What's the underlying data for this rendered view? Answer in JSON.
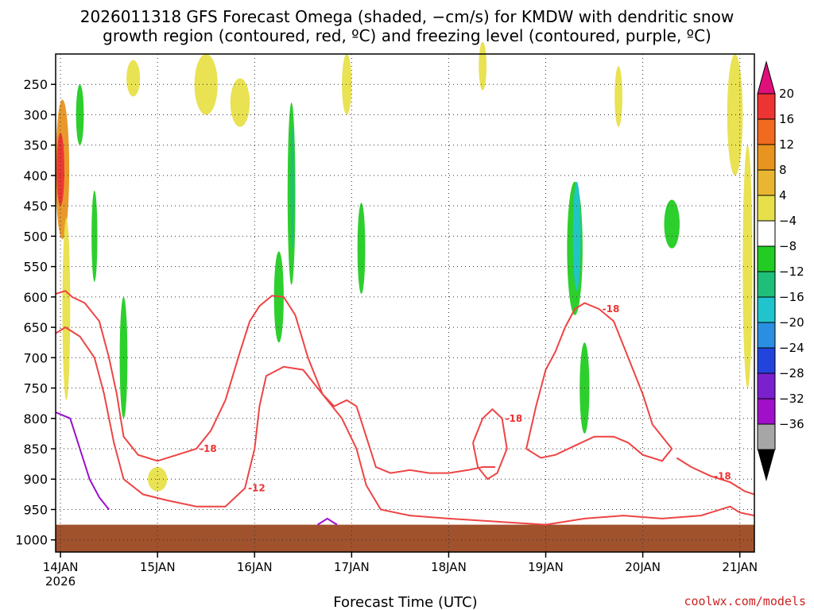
{
  "chart_data": {
    "type": "heatmap",
    "title_line1": "2026011318 GFS Forecast Omega (shaded, −cm/s) for KMDW with dendritic snow",
    "title_line2": "growth region (contoured, red, ºC) and freezing level (contoured, purple, ºC)",
    "xlabel": "Forecast Time (UTC)",
    "ylabel": "",
    "credit": "coolwx.com/models",
    "x_range_days": [
      0.95,
      8.15
    ],
    "y_range_hpa": [
      200,
      1020
    ],
    "x_ticks": [
      {
        "label": "14JAN",
        "sub": "2026",
        "day": 1.0
      },
      {
        "label": "15JAN",
        "sub": "",
        "day": 2.0
      },
      {
        "label": "16JAN",
        "sub": "",
        "day": 3.0
      },
      {
        "label": "17JAN",
        "sub": "",
        "day": 4.0
      },
      {
        "label": "18JAN",
        "sub": "",
        "day": 5.0
      },
      {
        "label": "19JAN",
        "sub": "",
        "day": 6.0
      },
      {
        "label": "20JAN",
        "sub": "",
        "day": 7.0
      },
      {
        "label": "21JAN",
        "sub": "",
        "day": 8.0
      }
    ],
    "y_ticks": [
      {
        "label": "250",
        "p": 250
      },
      {
        "label": "300",
        "p": 300
      },
      {
        "label": "350",
        "p": 350
      },
      {
        "label": "400",
        "p": 400
      },
      {
        "label": "450",
        "p": 450
      },
      {
        "label": "500",
        "p": 500
      },
      {
        "label": "550",
        "p": 550
      },
      {
        "label": "600",
        "p": 600
      },
      {
        "label": "650",
        "p": 650
      },
      {
        "label": "700",
        "p": 700
      },
      {
        "label": "750",
        "p": 750
      },
      {
        "label": "800",
        "p": 800
      },
      {
        "label": "850",
        "p": 850
      },
      {
        "label": "900",
        "p": 900
      },
      {
        "label": "950",
        "p": 950
      },
      {
        "label": "1000",
        "p": 1000
      }
    ],
    "colorbar": {
      "labels": [
        "20",
        "16",
        "12",
        "8",
        "4",
        "−4",
        "−8",
        "−12",
        "−16",
        "−20",
        "−24",
        "−28",
        "−32",
        "−36"
      ],
      "top_arrow_color": "#e0107a",
      "bottom_arrow_color": "#000000",
      "bands": [
        {
          "color": "#ee3333"
        },
        {
          "color": "#f06a20"
        },
        {
          "color": "#e89420"
        },
        {
          "color": "#e8b630"
        },
        {
          "color": "#e8e04a"
        },
        {
          "color": "#ffffff"
        },
        {
          "color": "#22cc22"
        },
        {
          "color": "#1fbf7a"
        },
        {
          "color": "#20c4cc"
        },
        {
          "color": "#2a8fe0"
        },
        {
          "color": "#2244dd"
        },
        {
          "color": "#7a20cc"
        },
        {
          "color": "#a010c8"
        },
        {
          "color": "#a6a6a6"
        }
      ]
    },
    "omega_patches": [
      {
        "day": 1.02,
        "p": 390,
        "dd": 0.07,
        "dp": 230,
        "value": 14,
        "color": "#e89420"
      },
      {
        "day": 1.0,
        "p": 390,
        "dd": 0.04,
        "dp": 120,
        "value": 18,
        "color": "#ee3333"
      },
      {
        "day": 1.06,
        "p": 620,
        "dd": 0.04,
        "dp": 300,
        "value": 5,
        "color": "#e8e04a"
      },
      {
        "day": 1.2,
        "p": 300,
        "dd": 0.04,
        "dp": 100,
        "value": -6,
        "color": "#22cc22"
      },
      {
        "day": 1.35,
        "p": 500,
        "dd": 0.03,
        "dp": 150,
        "value": -6,
        "color": "#22cc22"
      },
      {
        "day": 1.65,
        "p": 700,
        "dd": 0.04,
        "dp": 200,
        "value": -6,
        "color": "#22cc22"
      },
      {
        "day": 1.75,
        "p": 240,
        "dd": 0.07,
        "dp": 60,
        "value": 5,
        "color": "#e8e04a"
      },
      {
        "day": 2.0,
        "p": 900,
        "dd": 0.1,
        "dp": 40,
        "value": 5,
        "color": "#e8e04a"
      },
      {
        "day": 2.5,
        "p": 250,
        "dd": 0.12,
        "dp": 100,
        "value": 5,
        "color": "#e8e04a"
      },
      {
        "day": 2.85,
        "p": 280,
        "dd": 0.1,
        "dp": 80,
        "value": 5,
        "color": "#e8e04a"
      },
      {
        "day": 3.25,
        "p": 600,
        "dd": 0.05,
        "dp": 150,
        "value": -6,
        "color": "#22cc22"
      },
      {
        "day": 3.38,
        "p": 430,
        "dd": 0.04,
        "dp": 300,
        "value": -8,
        "color": "#22cc22"
      },
      {
        "day": 3.39,
        "p": 420,
        "dd": 0.02,
        "dp": 200,
        "value": -10,
        "color": "#1fbf7a"
      },
      {
        "day": 3.95,
        "p": 250,
        "dd": 0.05,
        "dp": 100,
        "value": 5,
        "color": "#e8e04a"
      },
      {
        "day": 4.1,
        "p": 520,
        "dd": 0.04,
        "dp": 150,
        "value": -6,
        "color": "#22cc22"
      },
      {
        "day": 5.35,
        "p": 220,
        "dd": 0.04,
        "dp": 80,
        "value": 5,
        "color": "#e8e04a"
      },
      {
        "day": 6.3,
        "p": 520,
        "dd": 0.08,
        "dp": 220,
        "value": -8,
        "color": "#22cc22"
      },
      {
        "day": 6.32,
        "p": 500,
        "dd": 0.04,
        "dp": 180,
        "value": -14,
        "color": "#20c4cc"
      },
      {
        "day": 6.4,
        "p": 750,
        "dd": 0.05,
        "dp": 150,
        "value": -6,
        "color": "#22cc22"
      },
      {
        "day": 6.75,
        "p": 270,
        "dd": 0.04,
        "dp": 100,
        "value": 5,
        "color": "#e8e04a"
      },
      {
        "day": 7.3,
        "p": 480,
        "dd": 0.08,
        "dp": 80,
        "value": -6,
        "color": "#22cc22"
      },
      {
        "day": 7.95,
        "p": 300,
        "dd": 0.08,
        "dp": 200,
        "value": 5,
        "color": "#e8e04a"
      },
      {
        "day": 8.08,
        "p": 550,
        "dd": 0.05,
        "dp": 400,
        "value": 5,
        "color": "#e8e04a"
      }
    ],
    "snow_growth_contours": [
      {
        "label": "-18",
        "points": [
          [
            0.95,
            595
          ],
          [
            1.05,
            590
          ],
          [
            1.12,
            600
          ],
          [
            1.25,
            610
          ],
          [
            1.4,
            640
          ],
          [
            1.5,
            700
          ],
          [
            1.58,
            760
          ],
          [
            1.65,
            830
          ],
          [
            1.8,
            860
          ],
          [
            2.0,
            870
          ],
          [
            2.2,
            860
          ],
          [
            2.4,
            850
          ],
          [
            2.55,
            820
          ],
          [
            2.7,
            770
          ],
          [
            2.85,
            690
          ],
          [
            2.95,
            640
          ],
          [
            3.05,
            615
          ],
          [
            3.18,
            598
          ],
          [
            3.3,
            600
          ],
          [
            3.42,
            630
          ],
          [
            3.55,
            700
          ],
          [
            3.7,
            760
          ],
          [
            3.82,
            780
          ],
          [
            3.95,
            770
          ],
          [
            4.05,
            780
          ],
          [
            4.15,
            830
          ],
          [
            4.25,
            880
          ],
          [
            4.4,
            890
          ],
          [
            4.6,
            885
          ],
          [
            4.8,
            890
          ],
          [
            5.0,
            890
          ],
          [
            5.2,
            885
          ],
          [
            5.35,
            880
          ],
          [
            5.48,
            880
          ]
        ]
      },
      {
        "label": "-12",
        "points": [
          [
            0.95,
            660
          ],
          [
            1.05,
            650
          ],
          [
            1.2,
            665
          ],
          [
            1.35,
            700
          ],
          [
            1.45,
            760
          ],
          [
            1.55,
            840
          ],
          [
            1.65,
            900
          ],
          [
            1.85,
            925
          ],
          [
            2.1,
            935
          ],
          [
            2.4,
            945
          ],
          [
            2.7,
            945
          ],
          [
            2.9,
            915
          ],
          [
            3.0,
            850
          ],
          [
            3.05,
            780
          ],
          [
            3.12,
            730
          ],
          [
            3.3,
            715
          ],
          [
            3.5,
            720
          ],
          [
            3.7,
            760
          ],
          [
            3.9,
            800
          ],
          [
            4.05,
            850
          ],
          [
            4.15,
            910
          ],
          [
            4.3,
            950
          ],
          [
            4.6,
            960
          ],
          [
            5.0,
            965
          ],
          [
            5.5,
            970
          ],
          [
            6.0,
            975
          ],
          [
            6.4,
            965
          ],
          [
            6.8,
            960
          ],
          [
            7.2,
            965
          ],
          [
            7.6,
            960
          ],
          [
            7.9,
            945
          ],
          [
            8.0,
            955
          ],
          [
            8.15,
            960
          ]
        ]
      },
      {
        "label": "-18",
        "points": [
          [
            5.8,
            850
          ],
          [
            5.9,
            780
          ],
          [
            6.0,
            720
          ],
          [
            6.1,
            690
          ],
          [
            6.2,
            650
          ],
          [
            6.3,
            620
          ],
          [
            6.4,
            610
          ],
          [
            6.55,
            620
          ],
          [
            6.7,
            640
          ],
          [
            6.85,
            700
          ],
          [
            7.0,
            760
          ],
          [
            7.1,
            810
          ],
          [
            7.2,
            830
          ],
          [
            7.3,
            850
          ],
          [
            7.2,
            870
          ],
          [
            7.0,
            860
          ],
          [
            6.85,
            840
          ],
          [
            6.7,
            830
          ],
          [
            6.5,
            830
          ],
          [
            6.3,
            845
          ],
          [
            6.1,
            860
          ],
          [
            5.95,
            865
          ],
          [
            5.8,
            850
          ]
        ]
      },
      {
        "label": "-18",
        "points": [
          [
            5.25,
            840
          ],
          [
            5.35,
            800
          ],
          [
            5.45,
            785
          ],
          [
            5.55,
            800
          ],
          [
            5.6,
            850
          ],
          [
            5.5,
            890
          ],
          [
            5.4,
            900
          ],
          [
            5.3,
            880
          ],
          [
            5.25,
            840
          ]
        ]
      },
      {
        "label": "-18",
        "points": [
          [
            7.35,
            865
          ],
          [
            7.5,
            880
          ],
          [
            7.7,
            895
          ],
          [
            7.9,
            905
          ],
          [
            8.05,
            920
          ],
          [
            8.15,
            925
          ]
        ]
      }
    ],
    "freezing_level_contours": [
      {
        "label": "0",
        "points": [
          [
            0.95,
            790
          ],
          [
            1.1,
            800
          ],
          [
            1.2,
            850
          ],
          [
            1.3,
            900
          ],
          [
            1.4,
            930
          ],
          [
            1.5,
            950
          ]
        ]
      },
      {
        "label": "0",
        "points": [
          [
            3.65,
            975
          ],
          [
            3.75,
            965
          ],
          [
            3.85,
            975
          ]
        ]
      }
    ]
  }
}
